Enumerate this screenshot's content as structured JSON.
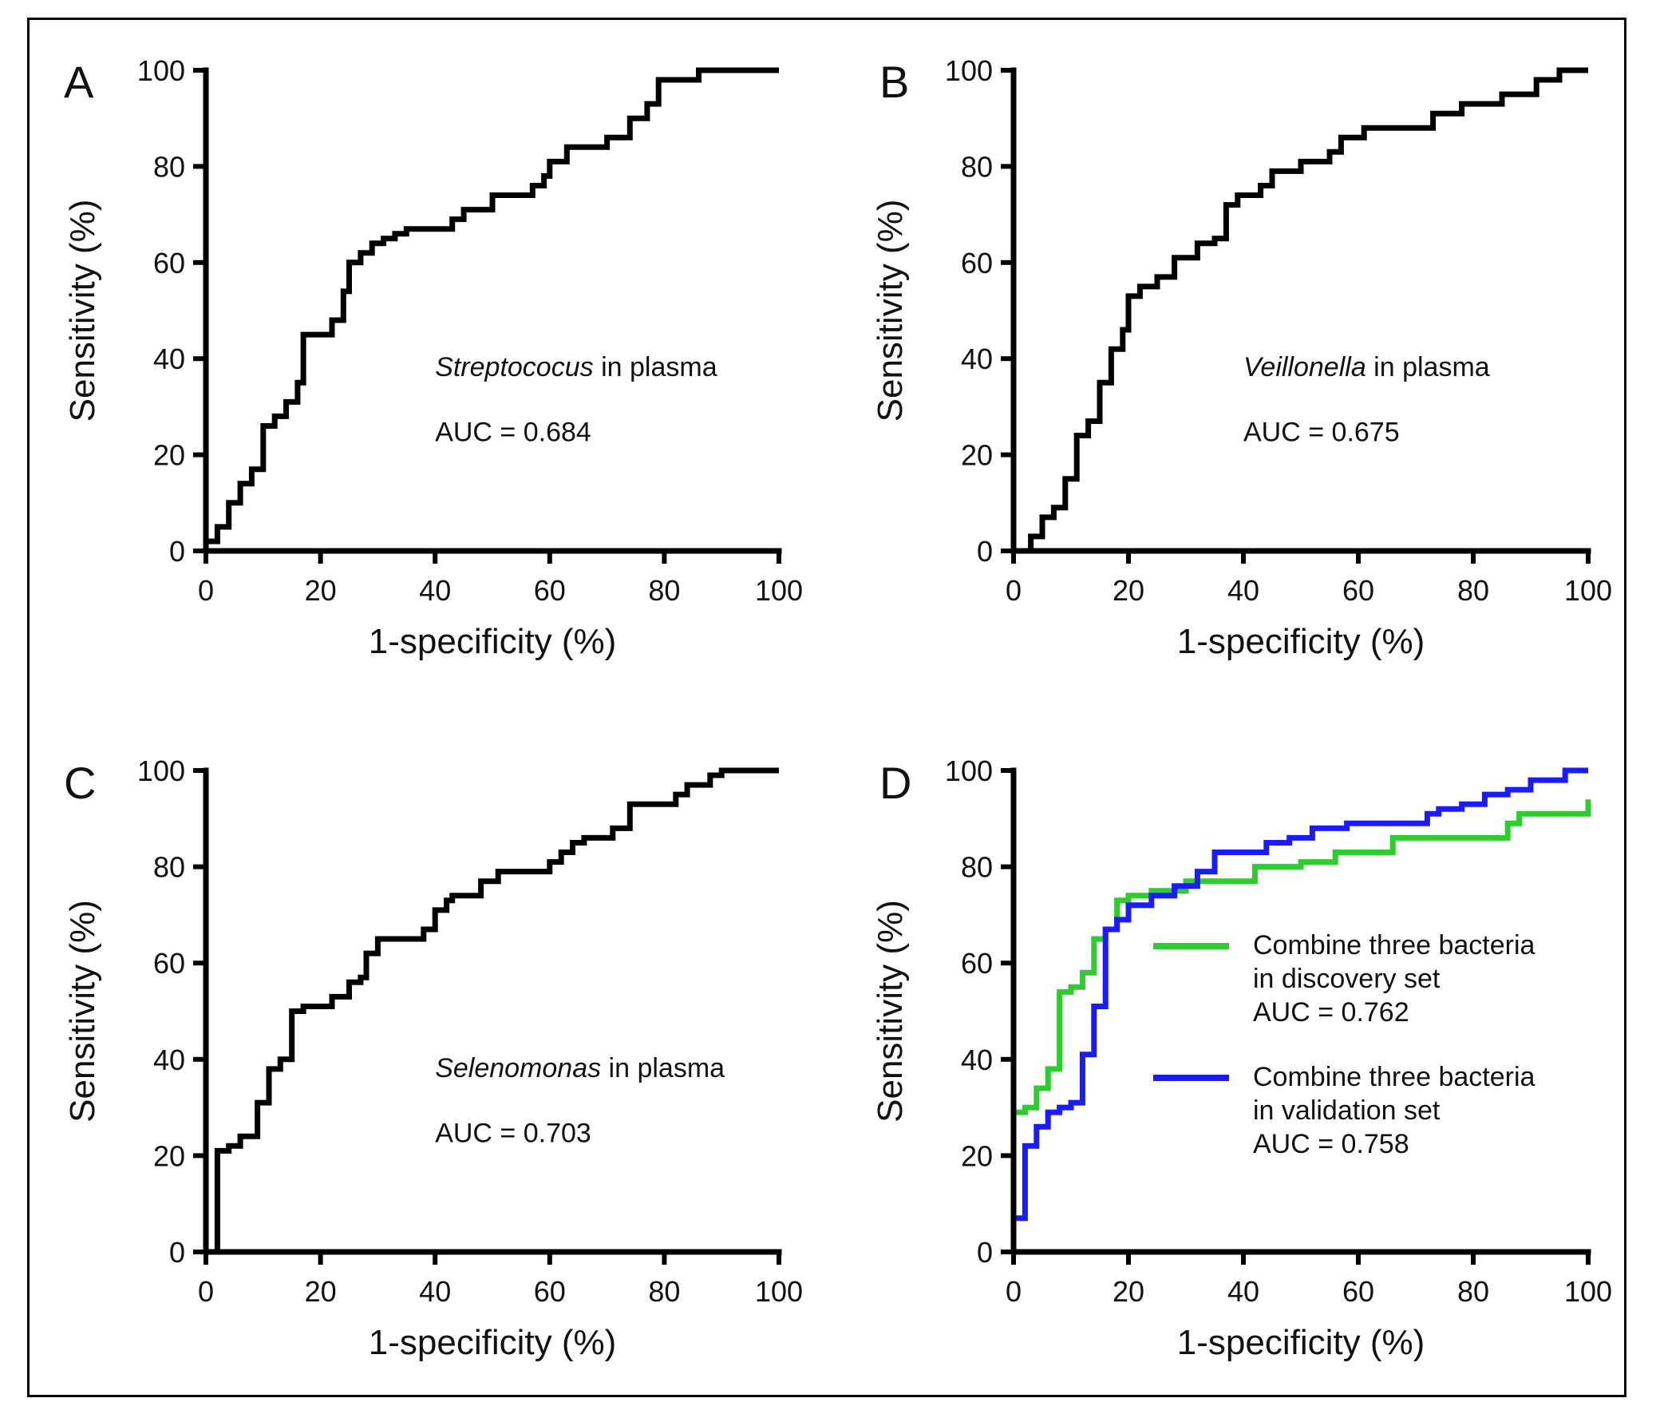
{
  "chart_data": [
    {
      "type": "line",
      "panel": "A",
      "xlabel": "1-specificity (%)",
      "ylabel": "Sensitivity (%)",
      "xlim": [
        0,
        100
      ],
      "ylim": [
        0,
        100
      ],
      "xticks": [
        0,
        20,
        40,
        60,
        80,
        100
      ],
      "yticks": [
        0,
        20,
        40,
        60,
        80,
        100
      ],
      "annotation_italic": "Streptococus",
      "annotation_rest": " in plasma",
      "auc": "AUC = 0.684",
      "series": [
        {
          "color": "#000000",
          "x": [
            0,
            0,
            2,
            2,
            4,
            4,
            6,
            6,
            8,
            8,
            10,
            10,
            12,
            12,
            14,
            14,
            16,
            16,
            17,
            17,
            22,
            22,
            24,
            24,
            25,
            25,
            27,
            27,
            29,
            29,
            31,
            31,
            33,
            33,
            35,
            35,
            43,
            43,
            45,
            45,
            50,
            50,
            57,
            57,
            59,
            59,
            60,
            60,
            63,
            63,
            70,
            70,
            74,
            74,
            77,
            77,
            79,
            79,
            86,
            86,
            100
          ],
          "y": [
            0,
            2,
            2,
            5,
            5,
            10,
            10,
            14,
            14,
            17,
            17,
            26,
            26,
            28,
            28,
            31,
            31,
            35,
            35,
            45,
            45,
            48,
            48,
            54,
            54,
            60,
            60,
            62,
            62,
            64,
            64,
            65,
            65,
            66,
            66,
            67,
            67,
            69,
            69,
            71,
            71,
            74,
            74,
            76,
            76,
            78,
            78,
            81,
            81,
            84,
            84,
            86,
            86,
            90,
            90,
            93,
            93,
            98,
            98,
            100,
            100
          ]
        }
      ]
    },
    {
      "type": "line",
      "panel": "B",
      "xlabel": "1-specificity (%)",
      "ylabel": "Sensitivity (%)",
      "xlim": [
        0,
        100
      ],
      "ylim": [
        0,
        100
      ],
      "xticks": [
        0,
        20,
        40,
        60,
        80,
        100
      ],
      "yticks": [
        0,
        20,
        40,
        60,
        80,
        100
      ],
      "annotation_italic": "Veillonella",
      "annotation_rest": " in plasma",
      "auc": "AUC = 0.675",
      "series": [
        {
          "color": "#000000",
          "x": [
            0,
            3,
            3,
            5,
            5,
            7,
            7,
            9,
            9,
            11,
            11,
            13,
            13,
            15,
            15,
            17,
            17,
            19,
            19,
            20,
            20,
            22,
            22,
            25,
            25,
            28,
            28,
            32,
            32,
            35,
            35,
            37,
            37,
            39,
            39,
            43,
            43,
            45,
            45,
            50,
            50,
            55,
            55,
            57,
            57,
            61,
            61,
            73,
            73,
            78,
            78,
            85,
            85,
            91,
            91,
            95,
            95,
            100
          ],
          "y": [
            0,
            0,
            3,
            3,
            7,
            7,
            9,
            9,
            15,
            15,
            24,
            24,
            27,
            27,
            35,
            35,
            42,
            42,
            46,
            46,
            53,
            53,
            55,
            55,
            57,
            57,
            61,
            61,
            64,
            64,
            65,
            65,
            72,
            72,
            74,
            74,
            76,
            76,
            79,
            79,
            81,
            81,
            83,
            83,
            86,
            86,
            88,
            88,
            91,
            91,
            93,
            93,
            95,
            95,
            98,
            98,
            100,
            100
          ]
        }
      ]
    },
    {
      "type": "line",
      "panel": "C",
      "xlabel": "1-specificity (%)",
      "ylabel": "Sensitivity (%)",
      "xlim": [
        0,
        100
      ],
      "ylim": [
        0,
        100
      ],
      "xticks": [
        0,
        20,
        40,
        60,
        80,
        100
      ],
      "yticks": [
        0,
        20,
        40,
        60,
        80,
        100
      ],
      "annotation_italic": "Selenomonas",
      "annotation_rest": " in plasma",
      "auc": "AUC = 0.703",
      "series": [
        {
          "color": "#000000",
          "x": [
            2,
            2,
            4,
            4,
            6,
            6,
            9,
            9,
            11,
            11,
            13,
            13,
            15,
            15,
            17,
            17,
            22,
            22,
            25,
            25,
            27,
            27,
            28,
            28,
            30,
            30,
            38,
            38,
            40,
            40,
            42,
            42,
            43,
            43,
            48,
            48,
            51,
            51,
            60,
            60,
            62,
            62,
            64,
            64,
            66,
            66,
            71,
            71,
            74,
            74,
            82,
            82,
            84,
            84,
            88,
            88,
            90,
            90,
            100
          ],
          "y": [
            0,
            21,
            21,
            22,
            22,
            24,
            24,
            31,
            31,
            38,
            38,
            40,
            40,
            50,
            50,
            51,
            51,
            53,
            53,
            56,
            56,
            57,
            57,
            62,
            62,
            65,
            65,
            67,
            67,
            71,
            71,
            73,
            73,
            74,
            74,
            77,
            77,
            79,
            79,
            81,
            81,
            83,
            83,
            85,
            85,
            86,
            86,
            88,
            88,
            93,
            93,
            95,
            95,
            97,
            97,
            99,
            99,
            100,
            100
          ]
        }
      ]
    },
    {
      "type": "line",
      "panel": "D",
      "xlabel": "1-specificity (%)",
      "ylabel": "Sensitivity (%)",
      "xlim": [
        0,
        100
      ],
      "ylim": [
        0,
        100
      ],
      "xticks": [
        0,
        20,
        40,
        60,
        80,
        100
      ],
      "yticks": [
        0,
        20,
        40,
        60,
        80,
        100
      ],
      "series": [
        {
          "name_line1": "Combine three bacteria",
          "name_line2": "in discovery set",
          "auc": "AUC = 0.762",
          "color": "#2ecc2e",
          "x": [
            0,
            0,
            2,
            2,
            4,
            4,
            6,
            6,
            8,
            8,
            10,
            10,
            12,
            12,
            14,
            14,
            16,
            16,
            18,
            18,
            20,
            20,
            24,
            24,
            30,
            30,
            42,
            42,
            50,
            50,
            56,
            56,
            66,
            66,
            86,
            86,
            88,
            88,
            100,
            100
          ],
          "y": [
            0,
            29,
            29,
            30,
            30,
            34,
            34,
            38,
            38,
            54,
            54,
            55,
            55,
            58,
            58,
            65,
            65,
            67,
            67,
            73,
            73,
            74,
            74,
            75,
            75,
            77,
            77,
            80,
            80,
            81,
            81,
            83,
            83,
            86,
            86,
            89,
            89,
            91,
            91,
            94
          ]
        },
        {
          "name_line1": "Combine three bacteria",
          "name_line2": "in validation set",
          "auc": "AUC = 0.758",
          "color": "#1b1bff",
          "x": [
            0,
            0,
            2,
            2,
            4,
            4,
            6,
            6,
            8,
            8,
            10,
            10,
            12,
            12,
            14,
            14,
            16,
            16,
            18,
            18,
            20,
            20,
            24,
            24,
            28,
            28,
            32,
            32,
            35,
            35,
            44,
            44,
            48,
            48,
            52,
            52,
            58,
            58,
            72,
            72,
            74,
            74,
            78,
            78,
            82,
            82,
            86,
            86,
            90,
            90,
            96,
            96,
            100
          ],
          "y": [
            0,
            7,
            7,
            22,
            22,
            26,
            26,
            29,
            29,
            30,
            30,
            31,
            31,
            41,
            41,
            51,
            51,
            67,
            67,
            69,
            69,
            72,
            72,
            74,
            74,
            76,
            76,
            79,
            79,
            83,
            83,
            85,
            85,
            86,
            86,
            88,
            88,
            89,
            89,
            91,
            91,
            92,
            92,
            93,
            93,
            95,
            95,
            96,
            96,
            98,
            98,
            100,
            100
          ]
        }
      ]
    }
  ]
}
